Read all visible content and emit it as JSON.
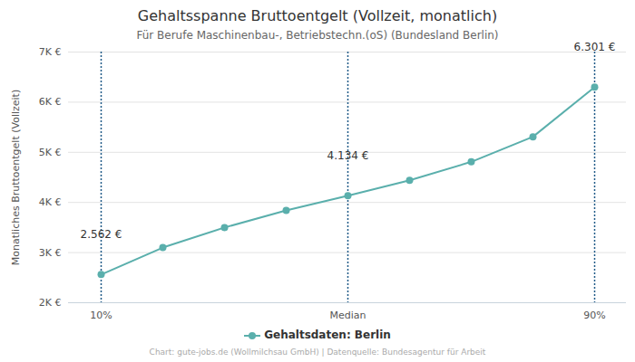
{
  "chart_data": {
    "type": "line",
    "title": "Gehaltsspanne Bruttoentgelt (Vollzeit, monatlich)",
    "subtitle": "Für Berufe Maschinenbau-, Betriebstechn.(oS) (Bundesland Berlin)",
    "caption": "Chart: gute-jobs.de (Wollmilchsau GmbH) | Datenquelle: Bundesagentur für Arbeit",
    "ylabel": "Monatliches Bruttoentgelt (Vollzeit)",
    "categories": [
      "10%",
      null,
      null,
      null,
      "Median",
      null,
      null,
      null,
      "90%"
    ],
    "series": [
      {
        "name": "Gehaltsdaten: Berlin",
        "color": "#5aafac",
        "marker": "circle",
        "values": [
          2562,
          3100,
          3500,
          3840,
          4134,
          4440,
          4810,
          5310,
          6301
        ],
        "value_labels": [
          "2.562 €",
          null,
          null,
          null,
          "4.134 €",
          null,
          null,
          null,
          "6.301 €"
        ]
      }
    ],
    "ylim": [
      2000,
      7000
    ],
    "yticks": [
      {
        "value": 2000,
        "label": "2K €"
      },
      {
        "value": 3000,
        "label": "3K €"
      },
      {
        "value": 4000,
        "label": "4K €"
      },
      {
        "value": 5000,
        "label": "5K €"
      },
      {
        "value": 6000,
        "label": "6K €"
      },
      {
        "value": 7000,
        "label": "7K €"
      }
    ],
    "grid": true,
    "legend": "bottom",
    "data_labels": true
  }
}
